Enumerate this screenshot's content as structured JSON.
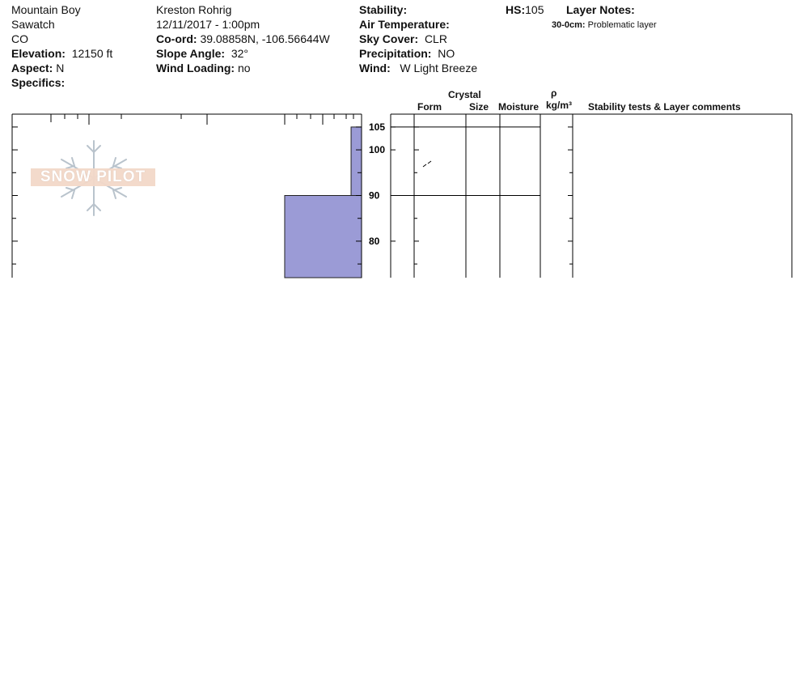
{
  "header": {
    "location": "Mountain Boy",
    "range": "Sawatch",
    "state": "CO",
    "elevation_label": "Elevation:",
    "elevation_value": "12150 ft",
    "aspect_label": "Aspect:",
    "aspect_value": "N",
    "specifics_label": "Specifics:",
    "observer": "Kreston Rohrig",
    "datetime": "12/11/2017 - 1:00pm",
    "coord_label": "Co-ord:",
    "coord_value": "39.08858N, -106.56644W",
    "slope_label": "Slope Angle:",
    "slope_value": "32°",
    "wind_loading_label": "Wind Loading:",
    "wind_loading_value": "no",
    "stability_label": "Stability:",
    "air_temp_label": "Air Temperature:",
    "sky_label": "Sky Cover:",
    "sky_value": "CLR",
    "precip_label": "Precipitation:",
    "precip_value": "NO",
    "wind_label": "Wind:",
    "wind_value": "W Light Breeze",
    "hs_label": "HS:",
    "hs_value": "105",
    "layer_notes_label": "Layer Notes:",
    "layer_note_depth": "30-0cm:",
    "layer_note_text": "Problematic layer"
  },
  "columns": {
    "crystal": "Crystal",
    "form": "Form",
    "size": "Size",
    "moisture": "Moisture",
    "rho": "ρ",
    "density_unit": "kg/m³",
    "stability_tests": "Stability tests & Layer comments"
  },
  "logo": {
    "text": "SNOW PILOT",
    "icon": "snowflake-icon"
  },
  "colors": {
    "hardness_fill": "#9b9bd6",
    "line": "#000000"
  },
  "chart_data": {
    "type": "bar",
    "ylim": [
      72,
      108
    ],
    "y_ticks": [
      105,
      100,
      90,
      80
    ],
    "y_minor_ticks": [
      95,
      85,
      75
    ],
    "layers": [
      {
        "top": 105,
        "bottom": 90,
        "hardness": 0.03
      },
      {
        "top": 90,
        "bottom": 72,
        "hardness": 0.22
      }
    ],
    "layer_boundaries": [
      105,
      90
    ],
    "grain_form_marks": [
      {
        "depth": 97,
        "symbol": "decomposing-fragments-icon"
      }
    ]
  }
}
